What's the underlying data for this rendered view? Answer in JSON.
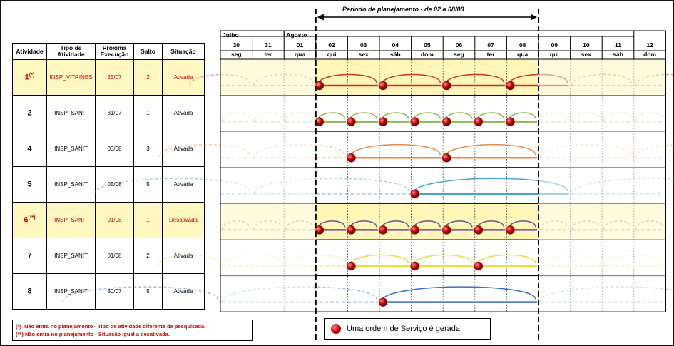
{
  "period_label": "Período de planejamento - de 02 a 08/08",
  "months": [
    {
      "name": "Julho",
      "start": 0,
      "span": 2
    },
    {
      "name": "Agosto",
      "start": 2,
      "span": 11
    }
  ],
  "days": [
    {
      "num": "30",
      "dow": "seg"
    },
    {
      "num": "31",
      "dow": "ter"
    },
    {
      "num": "01",
      "dow": "qua"
    },
    {
      "num": "02",
      "dow": "qui"
    },
    {
      "num": "03",
      "dow": "sex"
    },
    {
      "num": "04",
      "dow": "sáb"
    },
    {
      "num": "05",
      "dow": "dom"
    },
    {
      "num": "06",
      "dow": "seg"
    },
    {
      "num": "07",
      "dow": "ter"
    },
    {
      "num": "08",
      "dow": "qua"
    },
    {
      "num": "09",
      "dow": "qui"
    },
    {
      "num": "10",
      "dow": "sex"
    },
    {
      "num": "11",
      "dow": "sáb"
    },
    {
      "num": "12",
      "dow": "dom"
    }
  ],
  "headers": {
    "atividade": "Atividade",
    "tipo": "Tipo de Atividade",
    "proxima": "Próxima Execução",
    "salto": "Salto",
    "situacao": "Situação"
  },
  "rows": [
    {
      "atividade": "1",
      "mark": "(*)",
      "tipo": "INSP_VITRINES",
      "proxima": "25/07",
      "salto": "2",
      "situacao": "Ativada",
      "highlight": true,
      "color": "#c0392b",
      "start": 3,
      "step": 2
    },
    {
      "atividade": "2",
      "mark": "",
      "tipo": "INSP_SANIT",
      "proxima": "31/07",
      "salto": "1",
      "situacao": "Ativada",
      "highlight": false,
      "color": "#8db84a",
      "start": 3,
      "step": 1
    },
    {
      "atividade": "4",
      "mark": "",
      "tipo": "INSP_SANIT",
      "proxima": "03/08",
      "salto": "3",
      "situacao": "Ativada",
      "highlight": false,
      "color": "#e8894a",
      "start": 4,
      "step": 3
    },
    {
      "atividade": "5",
      "mark": "",
      "tipo": "INSP_SANIT",
      "proxima": "05/08",
      "salto": "5",
      "situacao": "Ativada",
      "highlight": false,
      "color": "#4ba3c7",
      "start": 6,
      "step": 5
    },
    {
      "atividade": "6",
      "mark": "(**)",
      "tipo": "INSP_SANIT",
      "proxima": "01/08",
      "salto": "1",
      "situacao": "Desativada",
      "highlight": true,
      "color": "#6c4f9e",
      "start": 3,
      "step": 1
    },
    {
      "atividade": "7",
      "mark": "",
      "tipo": "INSP_SANIT",
      "proxima": "01/08",
      "salto": "2",
      "situacao": "Ativada",
      "highlight": false,
      "color": "#e8e040",
      "start": 4,
      "step": 2
    },
    {
      "atividade": "8",
      "mark": "",
      "tipo": "INSP_SANIT",
      "proxima": "30/07",
      "salto": "5",
      "situacao": "Ativada",
      "highlight": false,
      "color": "#3b6fb6",
      "start": 5,
      "step": 5
    }
  ],
  "notes": [
    {
      "mark": "(*)",
      "text": "Não entra no planejamento - Tipo de atividade diferente da pesquisada."
    },
    {
      "mark": "(**)",
      "text": "Não entra no planejamento - Situação igual a desativada."
    }
  ],
  "legend": {
    "text": "Uma ordem de Serviço é gerada",
    "icon": "red-ball-icon"
  }
}
